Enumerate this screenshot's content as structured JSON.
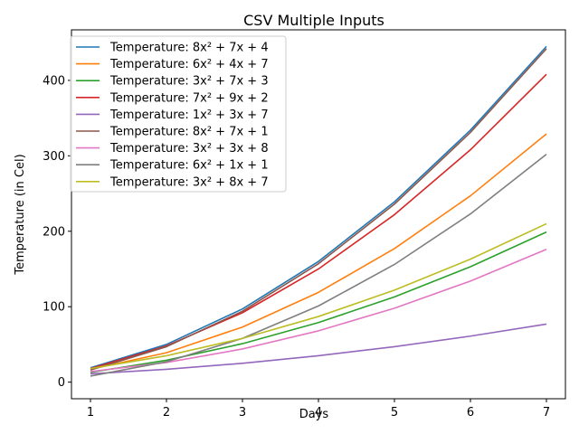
{
  "chart_data": {
    "type": "line",
    "title": "CSV Multiple Inputs",
    "xlabel": "Days",
    "ylabel": "Temperature (in Cel)",
    "x": [
      1,
      2,
      3,
      4,
      5,
      6,
      7
    ],
    "xlim": [
      0.75,
      7.25
    ],
    "ylim": [
      -22,
      467
    ],
    "xticks": [
      "1",
      "2",
      "3",
      "4",
      "5",
      "6",
      "7"
    ],
    "yticks": [
      0,
      100,
      200,
      300,
      400
    ],
    "grid": false,
    "legend_position": "upper-left",
    "series": [
      {
        "name": "Temperature: 8x² + 7x + 4",
        "color": "#1f77b4",
        "values": [
          19,
          50,
          97,
          160,
          239,
          334,
          445
        ]
      },
      {
        "name": "Temperature: 6x² + 4x + 7",
        "color": "#ff7f0e",
        "values": [
          17,
          39,
          73,
          119,
          177,
          247,
          329
        ]
      },
      {
        "name": "Temperature: 3x² + 7x + 3",
        "color": "#2ca02c",
        "values": [
          13,
          29,
          51,
          79,
          113,
          153,
          199
        ]
      },
      {
        "name": "Temperature: 7x² + 9x + 2",
        "color": "#d62728",
        "values": [
          18,
          48,
          92,
          150,
          222,
          308,
          408
        ]
      },
      {
        "name": "Temperature: 1x² + 3x + 7",
        "color": "#9467bd",
        "values": [
          11,
          17,
          25,
          35,
          47,
          61,
          77
        ]
      },
      {
        "name": "Temperature: 8x² + 7x + 1",
        "color": "#8c564b",
        "values": [
          16,
          47,
          94,
          157,
          236,
          331,
          442
        ]
      },
      {
        "name": "Temperature: 3x² + 3x + 8",
        "color": "#e377c2",
        "values": [
          14,
          26,
          44,
          68,
          98,
          134,
          176
        ]
      },
      {
        "name": "Temperature: 6x² + 1x + 1",
        "color": "#7f7f7f",
        "values": [
          8,
          27,
          58,
          101,
          156,
          223,
          302
        ]
      },
      {
        "name": "Temperature: 3x² + 8x + 7",
        "color": "#bcbd22",
        "values": [
          18,
          35,
          58,
          87,
          122,
          163,
          210
        ]
      }
    ]
  }
}
